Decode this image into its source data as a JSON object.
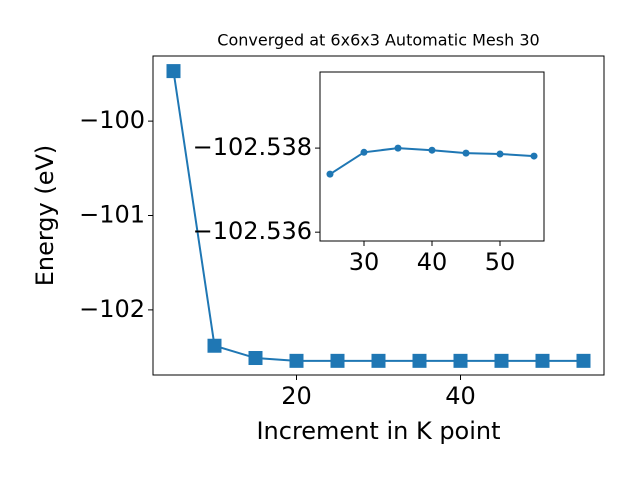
{
  "chart_data": [
    {
      "type": "line",
      "title": "Converged at 6x6x3 Automatic Mesh 30",
      "x_label": "Increment in K point",
      "y_label": "Energy (eV)",
      "x": [
        5,
        10,
        15,
        20,
        25,
        30,
        35,
        40,
        45,
        50,
        55
      ],
      "series": [
        {
          "color": "#1f77b4",
          "marker": "square",
          "values": [
            -99.47,
            -102.38,
            -102.51,
            -102.54,
            -102.54,
            -102.54,
            -102.54,
            -102.54,
            -102.54,
            -102.54,
            -102.54
          ]
        }
      ],
      "xlim": [
        2.5,
        57.5
      ],
      "ylim": [
        -102.69,
        -99.31
      ],
      "xticks": [
        20,
        40
      ],
      "yticks": [
        {
          "value": -100,
          "label": "−100"
        },
        {
          "value": -101,
          "label": "−101"
        },
        {
          "value": -102,
          "label": "−102"
        }
      ]
    },
    {
      "type": "line",
      "x": [
        25,
        30,
        35,
        40,
        45,
        50,
        55
      ],
      "series": [
        {
          "color": "#1f77b4",
          "marker": "circle",
          "values": [
            -102.53738,
            -102.5379,
            -102.538,
            -102.53795,
            -102.53788,
            -102.53786,
            -102.53781
          ]
        }
      ],
      "xlim": [
        23.53,
        56.47
      ],
      "ylim": [
        -102.53579,
        -102.53981
      ],
      "xticks": [
        30,
        40,
        50
      ],
      "yticks": [
        {
          "value": -102.538,
          "label": "−102.538"
        },
        {
          "value": -102.536,
          "label": "−102.536"
        }
      ]
    }
  ]
}
